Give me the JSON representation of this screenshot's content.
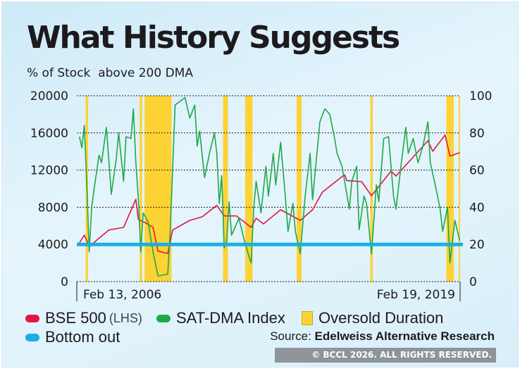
{
  "title": "What History Suggests",
  "subtitle": "% of Stock  above 200 DMA",
  "source_label": "Source:",
  "source_name": "Edelweiss Alternative Research",
  "watermark": "© BCCL 2026. ALL RIGHTS RESERVED.",
  "colors": {
    "bse500": "#e0173f",
    "sat_dma": "#1fa84a",
    "oversold": "#fdd234",
    "bottom_out": "#1aaee3"
  },
  "legend": [
    {
      "label": "BSE 500",
      "suffix": "(LHS)",
      "color": "#e0173f"
    },
    {
      "label": "SAT-DMA Index",
      "color": "#1fa84a"
    },
    {
      "label": "Oversold Duration",
      "color": "#fdd234"
    },
    {
      "label": "Bottom out",
      "color": "#1aaee3"
    }
  ],
  "chart_data": {
    "type": "line",
    "x_start_label": "Feb 13, 2006",
    "x_end_label": "Feb 19, 2019",
    "x_range": [
      "2006-02-13",
      "2019-02-19"
    ],
    "y_left": {
      "range": [
        0,
        20000
      ],
      "ticks": [
        "0",
        "4000",
        "8000",
        "12000",
        "16000",
        "20000"
      ]
    },
    "y_right": {
      "range": [
        0,
        100
      ],
      "ticks": [
        "0",
        "20",
        "40",
        "60",
        "80",
        "100"
      ]
    },
    "grid": "horizontal-dotted",
    "bottom_out": {
      "value_lhs": 4000,
      "value_rhs": 20
    },
    "oversold_bands": [
      [
        "2006-06",
        "2006-06"
      ],
      [
        "2008-04",
        "2008-04"
      ],
      [
        "2008-06",
        "2009-04"
      ],
      [
        "2011-02",
        "2011-03"
      ],
      [
        "2011-11",
        "2012-01"
      ],
      [
        "2013-08",
        "2013-09"
      ],
      [
        "2016-02",
        "2016-02"
      ],
      [
        "2018-09",
        "2018-11"
      ],
      [
        "2019-02",
        "2019-02"
      ]
    ],
    "series": [
      {
        "name": "BSE 500",
        "axis": "left",
        "points": [
          [
            "2006-03",
            4170
          ],
          [
            "2006-05",
            5000
          ],
          [
            "2006-07",
            3790
          ],
          [
            "2007-03",
            5550
          ],
          [
            "2007-09",
            5830
          ],
          [
            "2008-02",
            8860
          ],
          [
            "2008-03",
            6690
          ],
          [
            "2008-06",
            6310
          ],
          [
            "2008-09",
            5830
          ],
          [
            "2008-11",
            3280
          ],
          [
            "2009-03",
            3030
          ],
          [
            "2009-05",
            5550
          ],
          [
            "2009-12",
            6590
          ],
          [
            "2010-05",
            6970
          ],
          [
            "2010-11",
            8200
          ],
          [
            "2011-02",
            7070
          ],
          [
            "2011-07",
            7070
          ],
          [
            "2012-01",
            5830
          ],
          [
            "2012-03",
            6820
          ],
          [
            "2012-06",
            6210
          ],
          [
            "2013-01",
            7730
          ],
          [
            "2013-09",
            6590
          ],
          [
            "2014-02",
            7730
          ],
          [
            "2014-06",
            9620
          ],
          [
            "2015-03",
            11510
          ],
          [
            "2015-04",
            10860
          ],
          [
            "2015-10",
            10760
          ],
          [
            "2016-02",
            9240
          ],
          [
            "2016-10",
            11890
          ],
          [
            "2016-12",
            11360
          ],
          [
            "2018-01",
            15150
          ],
          [
            "2018-03",
            14020
          ],
          [
            "2018-08",
            15780
          ],
          [
            "2018-10",
            13510
          ],
          [
            "2019-02",
            13890
          ]
        ]
      },
      {
        "name": "SAT-DMA Index",
        "axis": "right",
        "points": [
          [
            "2006-03",
            78
          ],
          [
            "2006-04",
            72
          ],
          [
            "2006-05",
            84
          ],
          [
            "2006-06",
            52
          ],
          [
            "2006-07",
            16
          ],
          [
            "2006-08",
            40
          ],
          [
            "2006-09",
            50
          ],
          [
            "2006-11",
            68
          ],
          [
            "2006-12",
            64
          ],
          [
            "2007-02",
            83
          ],
          [
            "2007-04",
            47
          ],
          [
            "2007-06",
            66
          ],
          [
            "2007-07",
            80
          ],
          [
            "2007-09",
            54
          ],
          [
            "2007-10",
            78
          ],
          [
            "2007-12",
            77
          ],
          [
            "2008-01",
            93
          ],
          [
            "2008-02",
            64
          ],
          [
            "2008-03",
            45
          ],
          [
            "2008-04",
            16
          ],
          [
            "2008-05",
            37
          ],
          [
            "2008-07",
            32
          ],
          [
            "2008-09",
            16
          ],
          [
            "2008-11",
            3
          ],
          [
            "2009-03",
            4
          ],
          [
            "2009-04",
            27
          ],
          [
            "2009-06",
            95
          ],
          [
            "2009-10",
            99
          ],
          [
            "2009-12",
            88
          ],
          [
            "2010-02",
            95
          ],
          [
            "2010-03",
            73
          ],
          [
            "2010-04",
            81
          ],
          [
            "2010-06",
            56
          ],
          [
            "2010-08",
            69
          ],
          [
            "2010-10",
            80
          ],
          [
            "2010-11",
            69
          ],
          [
            "2010-12",
            42
          ],
          [
            "2011-01",
            57
          ],
          [
            "2011-02",
            18
          ],
          [
            "2011-03",
            22
          ],
          [
            "2011-04",
            43
          ],
          [
            "2011-05",
            25
          ],
          [
            "2011-08",
            34
          ],
          [
            "2011-10",
            23
          ],
          [
            "2011-12",
            14
          ],
          [
            "2012-01",
            10
          ],
          [
            "2012-02",
            39
          ],
          [
            "2012-03",
            54
          ],
          [
            "2012-05",
            37
          ],
          [
            "2012-07",
            62
          ],
          [
            "2012-08",
            46
          ],
          [
            "2012-10",
            69
          ],
          [
            "2012-11",
            52
          ],
          [
            "2013-01",
            75
          ],
          [
            "2013-03",
            44
          ],
          [
            "2013-04",
            27
          ],
          [
            "2013-06",
            42
          ],
          [
            "2013-07",
            27
          ],
          [
            "2013-09",
            15
          ],
          [
            "2013-11",
            46
          ],
          [
            "2014-01",
            69
          ],
          [
            "2014-02",
            44
          ],
          [
            "2014-05",
            86
          ],
          [
            "2014-07",
            93
          ],
          [
            "2014-09",
            90
          ],
          [
            "2014-11",
            77
          ],
          [
            "2014-12",
            69
          ],
          [
            "2015-02",
            62
          ],
          [
            "2015-05",
            39
          ],
          [
            "2015-06",
            54
          ],
          [
            "2015-08",
            62
          ],
          [
            "2015-09",
            28
          ],
          [
            "2015-11",
            46
          ],
          [
            "2015-12",
            42
          ],
          [
            "2016-02",
            15
          ],
          [
            "2016-04",
            52
          ],
          [
            "2016-05",
            43
          ],
          [
            "2016-07",
            77
          ],
          [
            "2016-09",
            78
          ],
          [
            "2016-11",
            46
          ],
          [
            "2016-12",
            39
          ],
          [
            "2017-02",
            62
          ],
          [
            "2017-04",
            83
          ],
          [
            "2017-05",
            69
          ],
          [
            "2017-07",
            77
          ],
          [
            "2017-09",
            64
          ],
          [
            "2017-11",
            73
          ],
          [
            "2018-01",
            86
          ],
          [
            "2018-02",
            64
          ],
          [
            "2018-04",
            52
          ],
          [
            "2018-06",
            39
          ],
          [
            "2018-07",
            27
          ],
          [
            "2018-09",
            40
          ],
          [
            "2018-10",
            10
          ],
          [
            "2018-11",
            22
          ],
          [
            "2018-12",
            33
          ],
          [
            "2019-02",
            22
          ]
        ]
      }
    ]
  }
}
